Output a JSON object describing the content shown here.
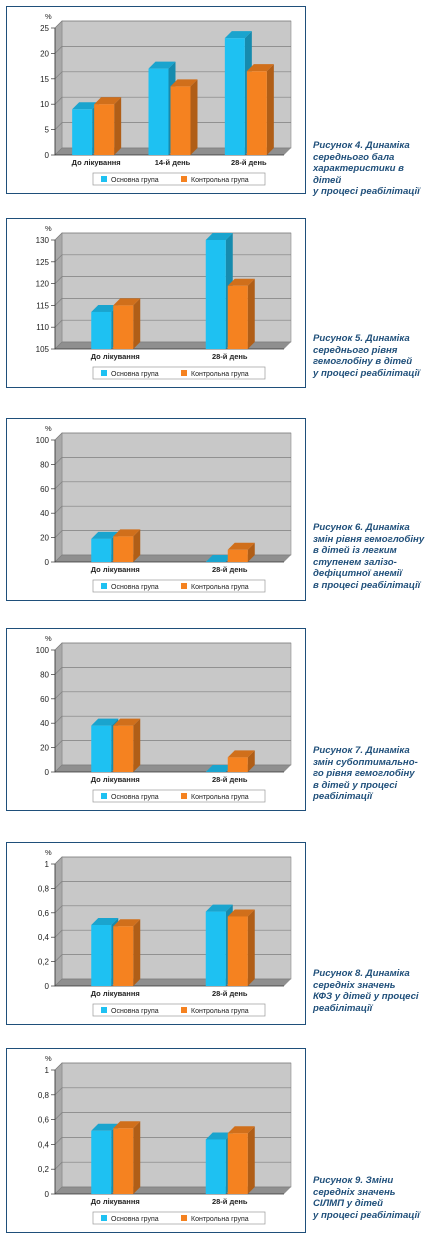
{
  "colors": {
    "main": "#1ec1f2",
    "control": "#f58220",
    "frame": "#1f4f7a",
    "caption": "#1f4f7a",
    "plot_bg": "#c8c8c8",
    "grid": "#7f7f7f"
  },
  "legend": {
    "main": "Основна група",
    "control": "Контрольна група"
  },
  "chart_data": [
    {
      "type": "bar",
      "unit_label": "%",
      "categories": [
        "До лікування",
        "14-й день",
        "28-й день"
      ],
      "series": [
        {
          "name": "Основна група",
          "values": [
            9,
            17,
            23
          ]
        },
        {
          "name": "Контрольна група",
          "values": [
            10,
            13.5,
            16.5
          ]
        }
      ],
      "ylim": [
        0,
        25
      ],
      "yticks": [
        "0",
        "5",
        "10",
        "15",
        "20",
        "25"
      ],
      "grid": true,
      "legend_position": "bottom",
      "caption": [
        "Рисунок 4. Динаміка",
        "середнього бала",
        "характеристики в дітей",
        "у процесі реабілітації"
      ]
    },
    {
      "type": "bar",
      "unit_label": "%",
      "categories": [
        "До лікування",
        "28-й день"
      ],
      "series": [
        {
          "name": "Основна група",
          "values": [
            113.5,
            130
          ]
        },
        {
          "name": "Контрольна група",
          "values": [
            115,
            119.5
          ]
        }
      ],
      "ylim": [
        105,
        130
      ],
      "yticks": [
        "105",
        "110",
        "115",
        "120",
        "125",
        "130"
      ],
      "grid": true,
      "legend_position": "bottom",
      "caption": [
        "Рисунок 5. Динаміка",
        "середнього рівня",
        "гемоглобіну в дітей",
        "у процесі реабілітації"
      ]
    },
    {
      "type": "bar",
      "unit_label": "%",
      "categories": [
        "До лікування",
        "28-й день"
      ],
      "series": [
        {
          "name": "Основна група",
          "values": [
            19,
            0
          ]
        },
        {
          "name": "Контрольна група",
          "values": [
            21,
            10
          ]
        }
      ],
      "ylim": [
        0,
        100
      ],
      "yticks": [
        "0",
        "20",
        "40",
        "60",
        "80",
        "100"
      ],
      "grid": true,
      "legend_position": "bottom",
      "caption": [
        "Рисунок 6. Динаміка",
        "змін рівня гемоглобіну",
        "в дітей із легким",
        "ступенем залізо-",
        "дефіцитної анемії",
        "в процесі реабілітації"
      ]
    },
    {
      "type": "bar",
      "unit_label": "%",
      "categories": [
        "До лікування",
        "28-й день"
      ],
      "series": [
        {
          "name": "Основна група",
          "values": [
            38,
            0
          ]
        },
        {
          "name": "Контрольна група",
          "values": [
            38,
            12
          ]
        }
      ],
      "ylim": [
        0,
        100
      ],
      "yticks": [
        "0",
        "20",
        "40",
        "60",
        "80",
        "100"
      ],
      "grid": true,
      "legend_position": "bottom",
      "caption": [
        "Рисунок 7. Динаміка",
        "змін субоптимально-",
        "го рівня гемоглобіну",
        "в дітей у процесі",
        "реабілітації"
      ]
    },
    {
      "type": "bar",
      "unit_label": "%",
      "categories": [
        "До лікування",
        "28-й день"
      ],
      "series": [
        {
          "name": "Основна група",
          "values": [
            0.5,
            0.61
          ]
        },
        {
          "name": "Контрольна група",
          "values": [
            0.49,
            0.57
          ]
        }
      ],
      "ylim": [
        0,
        1
      ],
      "yticks": [
        "0",
        "0,2",
        "0,4",
        "0,6",
        "0,8",
        "1"
      ],
      "grid": true,
      "legend_position": "bottom",
      "caption": [
        "Рисунок 8. Динаміка",
        "середніх значень",
        "КФЗ у дітей у процесі",
        "реабілітації"
      ]
    },
    {
      "type": "bar",
      "unit_label": "%",
      "categories": [
        "До лікування",
        "28-й день"
      ],
      "series": [
        {
          "name": "Основна група",
          "values": [
            0.51,
            0.44
          ]
        },
        {
          "name": "Контрольна група",
          "values": [
            0.53,
            0.49
          ]
        }
      ],
      "ylim": [
        0,
        1
      ],
      "yticks": [
        "0",
        "0,2",
        "0,4",
        "0,6",
        "0,8",
        "1"
      ],
      "grid": true,
      "legend_position": "bottom",
      "caption": [
        "Рисунок 9. Зміни",
        "середніх значень",
        "СІЛМП у дітей",
        "у процесі реабілітації"
      ]
    }
  ]
}
